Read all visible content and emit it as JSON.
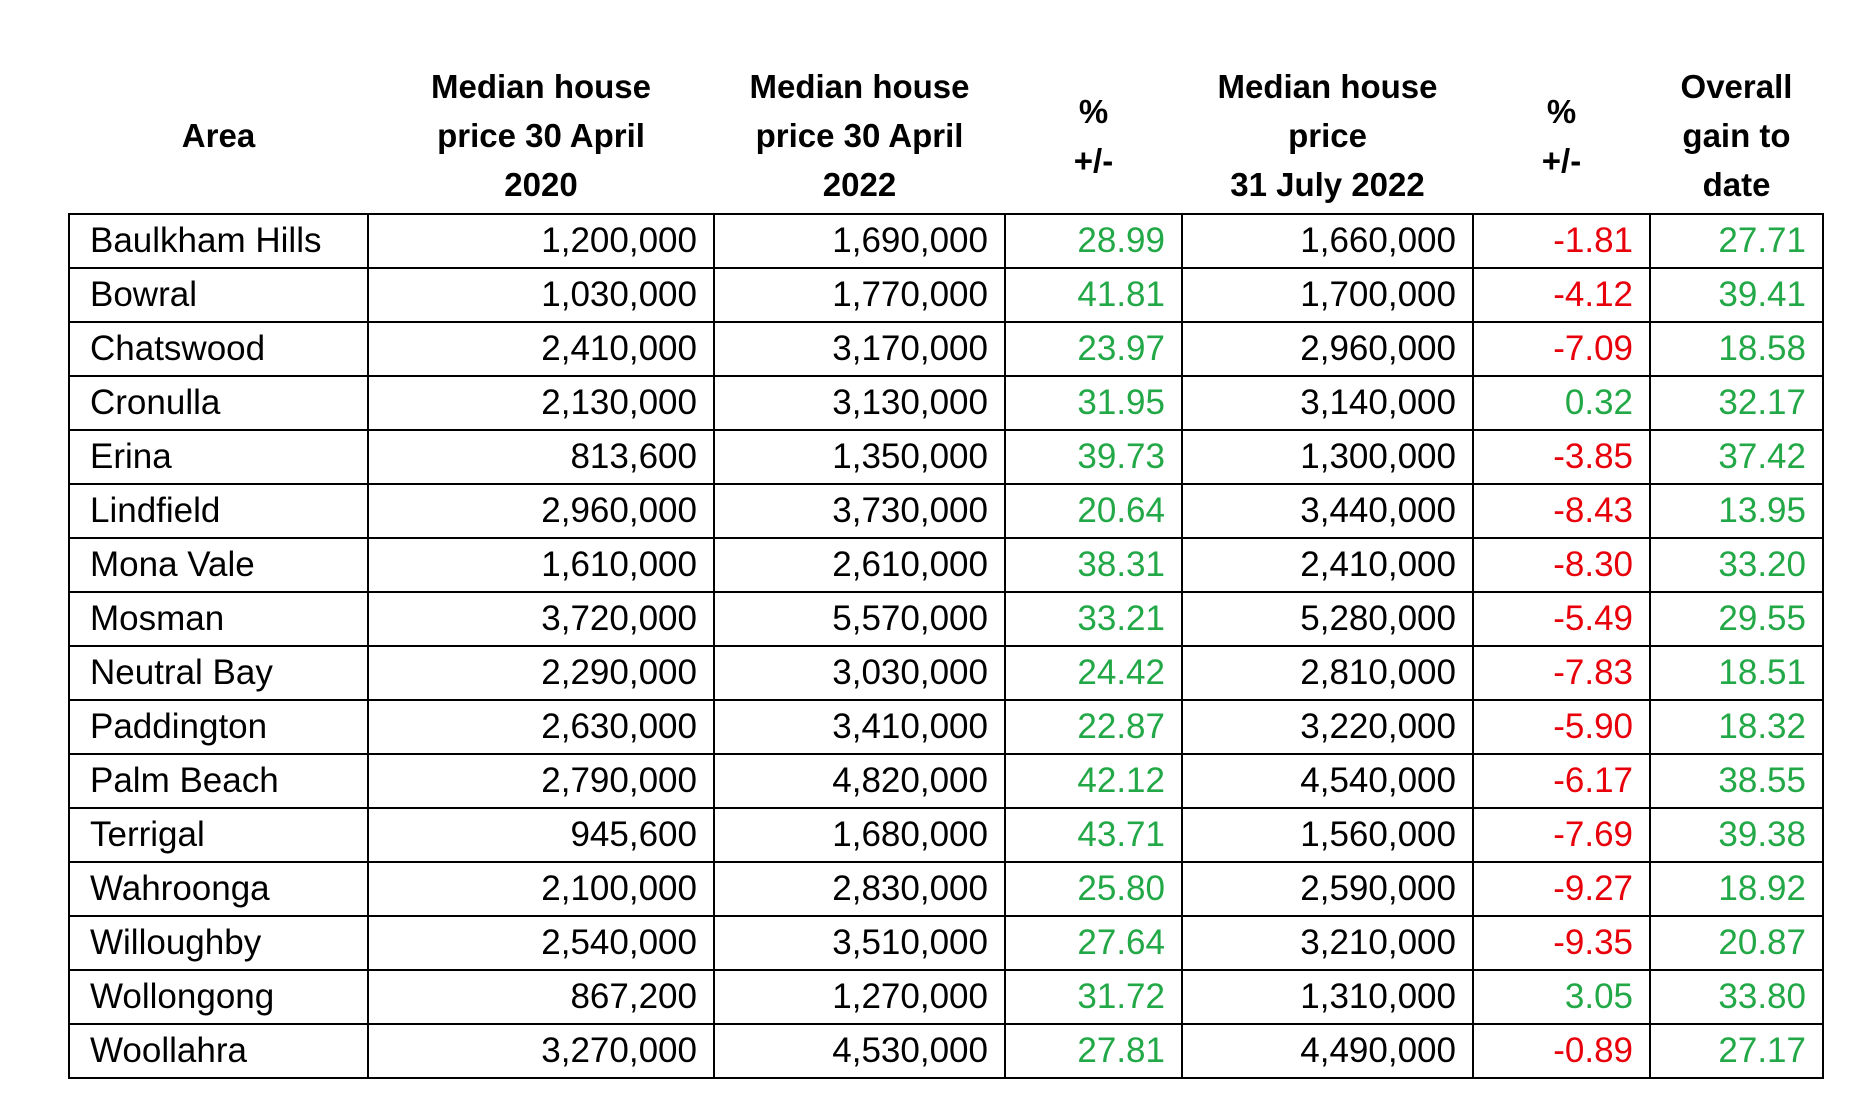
{
  "table": {
    "header": [
      [
        "Area"
      ],
      [
        "Median house",
        "price 30 April",
        "2020"
      ],
      [
        "Median house",
        "price 30 April",
        "2022"
      ],
      [
        "%",
        "+/-"
      ],
      [
        "Median house",
        "price",
        "31 July 2022"
      ],
      [
        "%",
        "+/-"
      ],
      [
        "Overall",
        "gain to",
        "date"
      ]
    ],
    "positive_color": "#22a846",
    "negative_color": "#e8000b",
    "rows": [
      [
        "Baulkham Hills",
        "1,200,000",
        "1,690,000",
        "28.99",
        "1,660,000",
        "-1.81",
        "27.71"
      ],
      [
        "Bowral",
        "1,030,000",
        "1,770,000",
        "41.81",
        "1,700,000",
        "-4.12",
        "39.41"
      ],
      [
        "Chatswood",
        "2,410,000",
        "3,170,000",
        "23.97",
        "2,960,000",
        "-7.09",
        "18.58"
      ],
      [
        "Cronulla",
        "2,130,000",
        "3,130,000",
        "31.95",
        "3,140,000",
        "0.32",
        "32.17"
      ],
      [
        "Erina",
        "813,600",
        "1,350,000",
        "39.73",
        "1,300,000",
        "-3.85",
        "37.42"
      ],
      [
        "Lindfield",
        "2,960,000",
        "3,730,000",
        "20.64",
        "3,440,000",
        "-8.43",
        "13.95"
      ],
      [
        "Mona Vale",
        "1,610,000",
        "2,610,000",
        "38.31",
        "2,410,000",
        "-8.30",
        "33.20"
      ],
      [
        "Mosman",
        "3,720,000",
        "5,570,000",
        "33.21",
        "5,280,000",
        "-5.49",
        "29.55"
      ],
      [
        "Neutral Bay",
        "2,290,000",
        "3,030,000",
        "24.42",
        "2,810,000",
        "-7.83",
        "18.51"
      ],
      [
        "Paddington",
        "2,630,000",
        "3,410,000",
        "22.87",
        "3,220,000",
        "-5.90",
        "18.32"
      ],
      [
        "Palm Beach",
        "2,790,000",
        "4,820,000",
        "42.12",
        "4,540,000",
        "-6.17",
        "38.55"
      ],
      [
        "Terrigal",
        "945,600",
        "1,680,000",
        "43.71",
        "1,560,000",
        "-7.69",
        "39.38"
      ],
      [
        "Wahroonga",
        "2,100,000",
        "2,830,000",
        "25.80",
        "2,590,000",
        "-9.27",
        "18.92"
      ],
      [
        "Willoughby",
        "2,540,000",
        "3,510,000",
        "27.64",
        "3,210,000",
        "-9.35",
        "20.87"
      ],
      [
        "Wollongong",
        "867,200",
        "1,270,000",
        "31.72",
        "1,310,000",
        "3.05",
        "33.80"
      ],
      [
        "Woollahra",
        "3,270,000",
        "4,530,000",
        "27.81",
        "4,490,000",
        "-0.89",
        "27.17"
      ]
    ]
  }
}
